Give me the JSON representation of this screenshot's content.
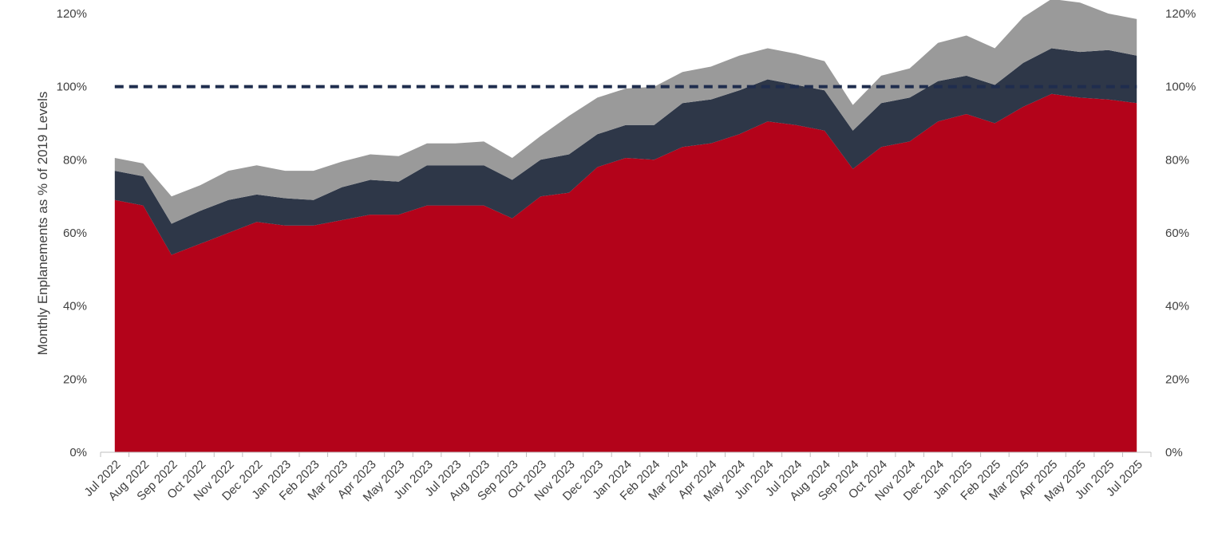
{
  "chart_data": {
    "type": "area",
    "stacked": true,
    "title": "",
    "xlabel": "",
    "ylabel": "Monthly Enplanements as % of 2019 Levels",
    "ylim": [
      0,
      120
    ],
    "y_ticks": [
      "0%",
      "20%",
      "40%",
      "60%",
      "80%",
      "100%",
      "120%"
    ],
    "y_ticks_right": [
      "0%",
      "20%",
      "40%",
      "60%",
      "80%",
      "100%",
      "120%"
    ],
    "grid": false,
    "legend": "none",
    "categories": [
      "Jul 2022",
      "Aug 2022",
      "Sep 2022",
      "Oct 2022",
      "Nov 2022",
      "Dec 2022",
      "Jan 2023",
      "Feb 2023",
      "Mar 2023",
      "Apr 2023",
      "May 2023",
      "Jun 2023",
      "Jul 2023",
      "Aug 2023",
      "Sep 2023",
      "Oct 2023",
      "Nov 2023",
      "Dec 2023",
      "Jan 2024",
      "Feb 2024",
      "Mar 2024",
      "Apr 2024",
      "May 2024",
      "Jun 2024",
      "Jul 2024",
      "Aug 2024",
      "Sep 2024",
      "Oct 2024",
      "Nov 2024",
      "Dec 2024",
      "Jan 2025",
      "Feb 2025",
      "Mar 2025",
      "Apr 2025",
      "May 2025",
      "Jun 2025",
      "Jul 2025"
    ],
    "series": [
      {
        "color": "#b3031a",
        "values": [
          69,
          67.5,
          54,
          57,
          60,
          63,
          62,
          62,
          63.5,
          65,
          65,
          67.5,
          67.5,
          67.5,
          64,
          70,
          71,
          78,
          80.5,
          80,
          83.5,
          84.5,
          87,
          90.5,
          89.5,
          88,
          77.5,
          83.5,
          85,
          90.5,
          92.5,
          90,
          94.5,
          98,
          97,
          96.5,
          95.5
        ]
      },
      {
        "color": "#2e3748",
        "values": [
          8,
          8,
          8.5,
          9,
          9,
          7.5,
          7.5,
          7,
          9,
          9.5,
          9,
          11,
          11,
          11,
          10.5,
          10,
          10.5,
          9,
          9,
          9.5,
          12,
          12,
          12,
          11.5,
          11,
          11,
          10.5,
          12,
          12,
          11,
          10.5,
          10.5,
          12,
          12.5,
          12.5,
          13.5,
          13
        ]
      },
      {
        "color": "#9a9a9a",
        "values": [
          3.5,
          3.5,
          7.5,
          7,
          8,
          8,
          7.5,
          8,
          7,
          7,
          7,
          6,
          6,
          6.5,
          6,
          6.5,
          10.5,
          10,
          10,
          10.5,
          8.5,
          9,
          9.5,
          8.5,
          8.5,
          8,
          7,
          7.5,
          8,
          10.5,
          11,
          10,
          12.5,
          13.5,
          13.5,
          10,
          10
        ]
      }
    ],
    "reference_line": {
      "value": 100,
      "style": "dashed",
      "color": "#1f2d4e"
    }
  }
}
